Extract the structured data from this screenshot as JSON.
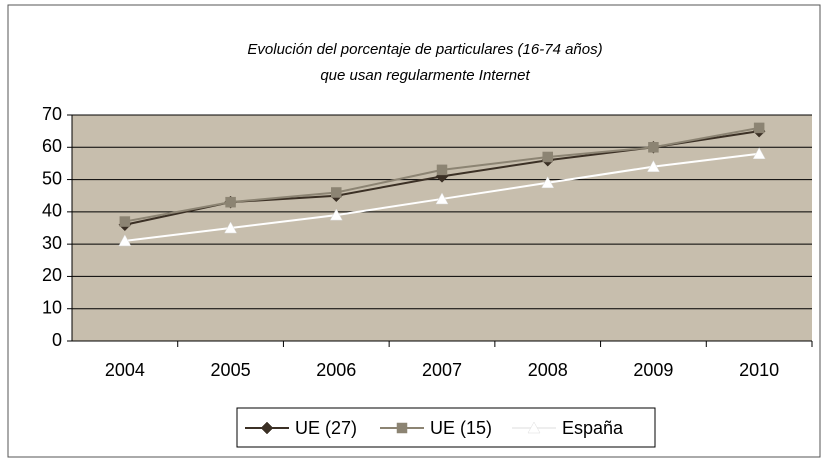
{
  "chart_data": {
    "type": "line",
    "title": [
      "Evolución del porcentaje de particulares (16-74 años)",
      "que usan regularmente Internet"
    ],
    "categories": [
      "2004",
      "2005",
      "2006",
      "2007",
      "2008",
      "2009",
      "2010"
    ],
    "series": [
      {
        "name": "UE (27)",
        "color": "#3b3025",
        "marker": "diamond",
        "values": [
          36,
          43,
          45,
          51,
          56,
          60,
          65
        ]
      },
      {
        "name": "UE (15)",
        "color": "#8c8473",
        "marker": "square",
        "values": [
          37,
          43,
          46,
          53,
          57,
          60,
          66
        ]
      },
      {
        "name": "España",
        "color": "#ffffff",
        "marker": "triangle",
        "values": [
          31,
          35,
          39,
          44,
          49,
          54,
          58
        ]
      }
    ],
    "ylim": [
      0,
      70
    ],
    "yticks": [
      0,
      10,
      20,
      30,
      40,
      50,
      60,
      70
    ],
    "grid": true,
    "legend": "bottom"
  }
}
